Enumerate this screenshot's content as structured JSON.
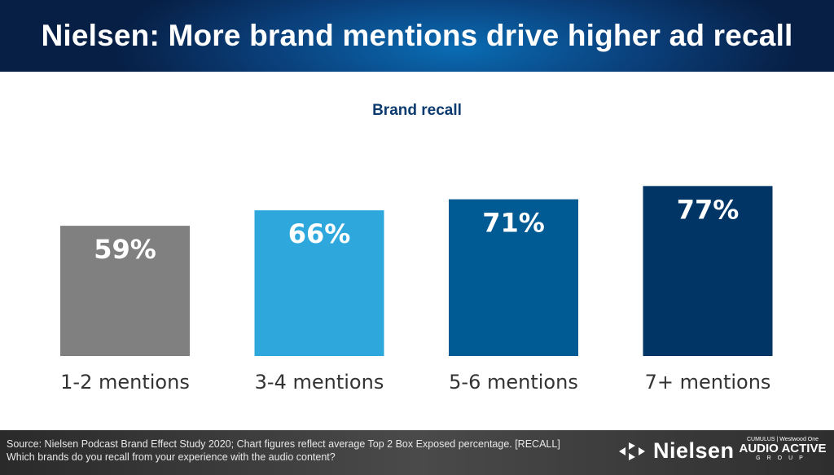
{
  "header": {
    "title": "Nielsen: More brand mentions drive higher ad recall"
  },
  "chart_data": {
    "type": "bar",
    "title": "Brand recall",
    "categories": [
      "1-2 mentions",
      "3-4 mentions",
      "5-6 mentions",
      "7+ mentions"
    ],
    "values": [
      59,
      66,
      71,
      77
    ],
    "data_labels": [
      "59%",
      "66%",
      "71%",
      "77%"
    ],
    "colors": [
      "#808080",
      "#2ea8dc",
      "#005a93",
      "#003566"
    ],
    "ylim": [
      0,
      100
    ],
    "grid": false,
    "xlabel": "",
    "ylabel": ""
  },
  "footer": {
    "source_line1": "Source: Nielsen Podcast Brand Effect Study 2020; Chart figures reflect average Top 2 Box Exposed percentage. [RECALL]",
    "source_line2": "Which brands do you recall from your experience with the audio content?",
    "nielsen_logo": "Nielsen",
    "partner_top": "CUMULUS | Westwood One",
    "partner_main": "AUDIO ACTIVE",
    "partner_sub": "GROUP"
  }
}
